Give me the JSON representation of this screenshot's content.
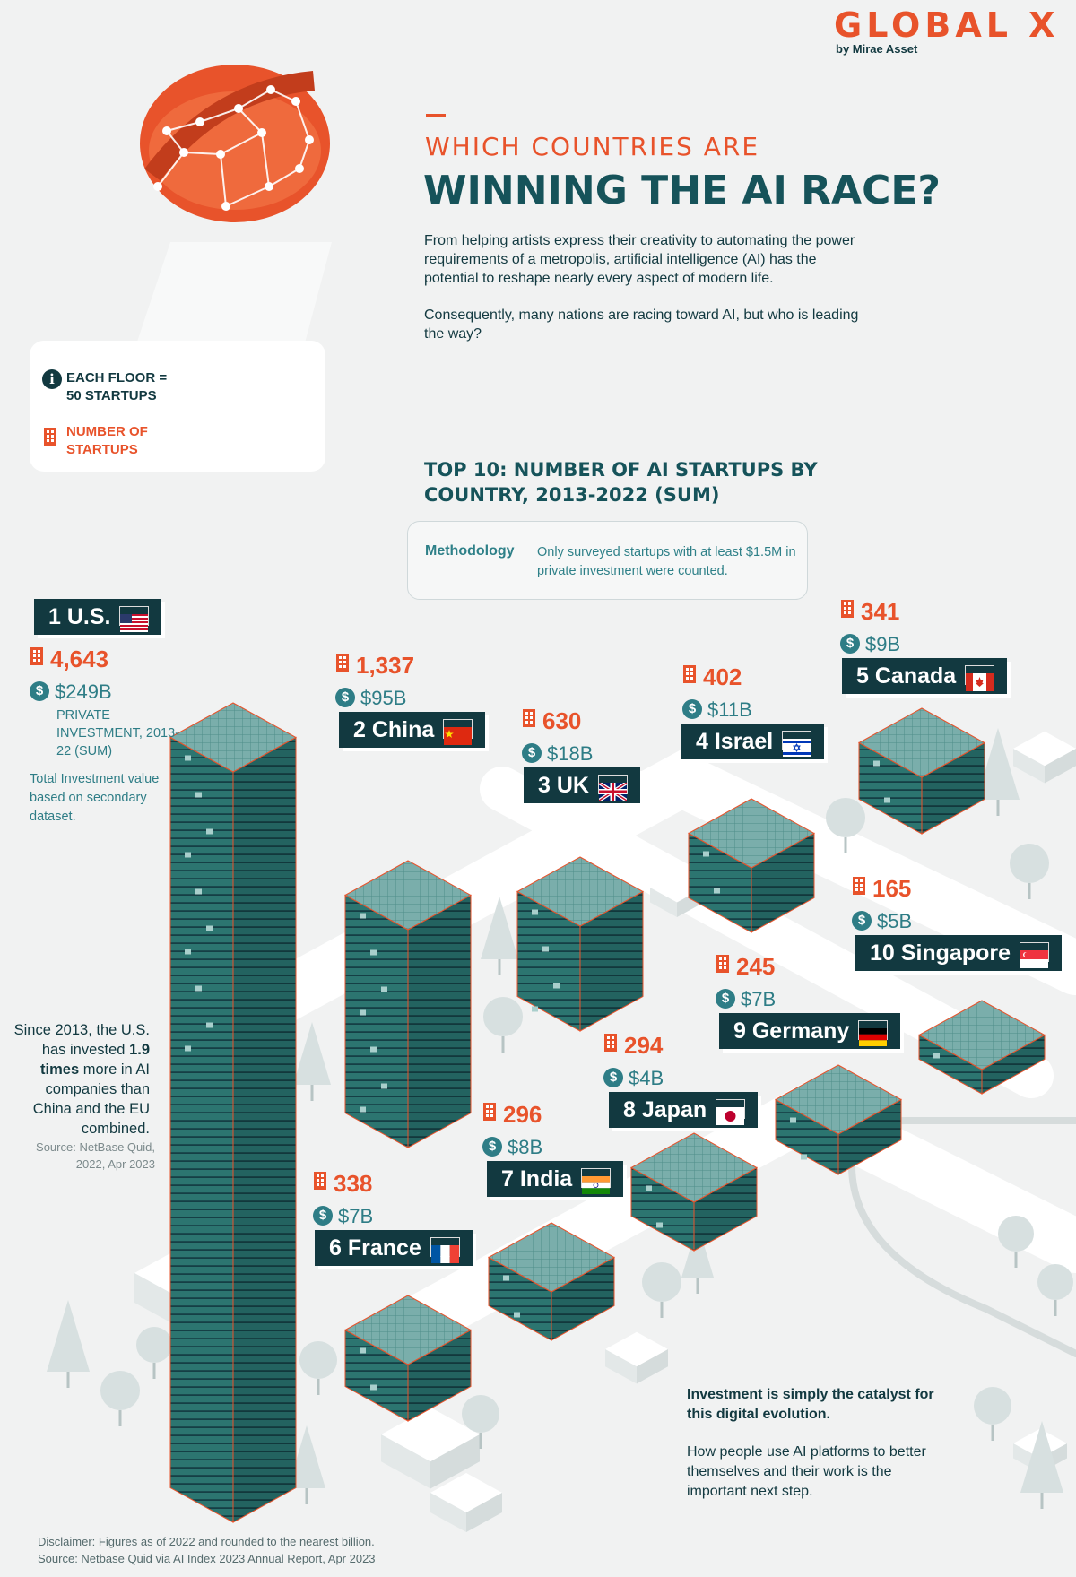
{
  "brand": {
    "name": "GLOBAL X",
    "sub": "by Mirae Asset"
  },
  "header": {
    "kicker": "WHICH COUNTRIES ARE",
    "title": "WINNING THE AI RACE?",
    "intro1": "From helping artists express their creativity to automating the power requirements of a metropolis, artificial intelligence (AI) has the potential to reshape nearly every aspect of modern life.",
    "intro2": "Consequently, many nations are racing toward AI, but who is leading the way?"
  },
  "legend": {
    "floor": "EACH FLOOR = 50 STARTUPS",
    "count": "NUMBER OF STARTUPS"
  },
  "subtitle": "TOP 10: NUMBER OF AI STARTUPS BY COUNTRY, 2013-2022 (SUM)",
  "methodology": {
    "label": "Methodology",
    "text": "Only surveyed startups with at least $1.5M in private investment were counted."
  },
  "chart_data": {
    "type": "bar",
    "title": "TOP 10: NUMBER OF AI STARTUPS BY COUNTRY, 2013-2022 (SUM)",
    "unit_note": "EACH FLOOR = 50 STARTUPS",
    "series_names": [
      "NUMBER OF STARTUPS",
      "PRIVATE INVESTMENT, 2013-22 (SUM)"
    ],
    "countries": [
      {
        "rank": "1",
        "name": "U.S.",
        "startups": 4643,
        "startups_label": "4,643",
        "investment_label": "$249B",
        "investment_billion": 249
      },
      {
        "rank": "2",
        "name": "China",
        "startups": 1337,
        "startups_label": "1,337",
        "investment_label": "$95B",
        "investment_billion": 95
      },
      {
        "rank": "3",
        "name": "UK",
        "startups": 630,
        "startups_label": "630",
        "investment_label": "$18B",
        "investment_billion": 18
      },
      {
        "rank": "4",
        "name": "Israel",
        "startups": 402,
        "startups_label": "402",
        "investment_label": "$11B",
        "investment_billion": 11
      },
      {
        "rank": "5",
        "name": "Canada",
        "startups": 341,
        "startups_label": "341",
        "investment_label": "$9B",
        "investment_billion": 9
      },
      {
        "rank": "6",
        "name": "France",
        "startups": 338,
        "startups_label": "338",
        "investment_label": "$7B",
        "investment_billion": 7
      },
      {
        "rank": "7",
        "name": "India",
        "startups": 296,
        "startups_label": "296",
        "investment_label": "$8B",
        "investment_billion": 8
      },
      {
        "rank": "8",
        "name": "Japan",
        "startups": 294,
        "startups_label": "294",
        "investment_label": "$4B",
        "investment_billion": 4
      },
      {
        "rank": "9",
        "name": "Germany",
        "startups": 245,
        "startups_label": "245",
        "investment_label": "$7B",
        "investment_billion": 7
      },
      {
        "rank": "10",
        "name": "Singapore",
        "startups": 165,
        "startups_label": "165",
        "investment_label": "$5B",
        "investment_billion": 5
      }
    ]
  },
  "us_note": "PRIVATE INVESTMENT, 2013-22 (SUM)",
  "total_note": "Total Investment value based on secondary dataset.",
  "since": {
    "pre": "Since 2013, the U.S. has invested ",
    "bold": "1.9 times",
    "post": " more in AI companies than China and the EU combined.",
    "source": "Source: NetBase Quid, 2022, Apr 2023"
  },
  "closing": {
    "bold": "Investment is simply the catalyst for this digital evolution.",
    "text": "How people use AI platforms to better themselves and their work is the important next step."
  },
  "disclaimer": {
    "line1": "Disclaimer: Figures as of 2022 and rounded to the nearest billion.",
    "line2": "Source: Netbase Quid via AI Index 2023 Annual Report, Apr 2023"
  },
  "colors": {
    "orange": "#e8532b",
    "navy": "#123940",
    "teal": "#2e7d86",
    "building": "#2e7773",
    "roof": "#6fa5a4"
  }
}
